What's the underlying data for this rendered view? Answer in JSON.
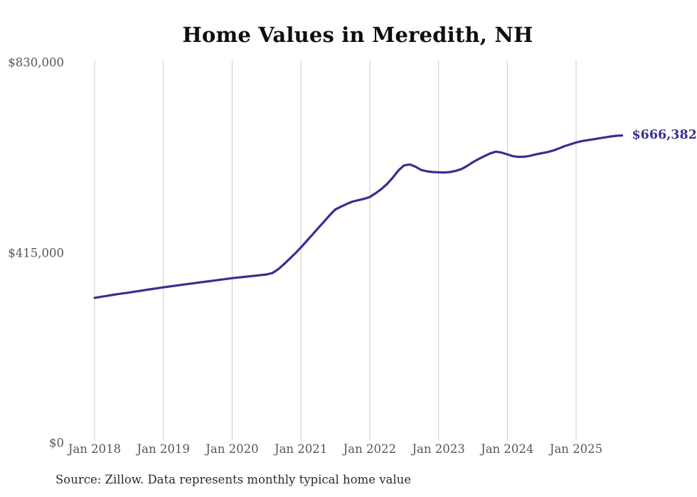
{
  "page": {
    "title": "Home Values in Meredith, NH",
    "source_note": "Source: Zillow. Data represents monthly typical home value"
  },
  "chart_data": {
    "type": "line",
    "title": "Home Values in Meredith, NH",
    "unit": "USD",
    "legend": "none",
    "grid": "vertical-only",
    "line_color": "#363090",
    "gridline_color": "#cccccc",
    "end_label": "$666,382",
    "end_value": 666382,
    "y_axis": {
      "min": 0,
      "max": 830000,
      "ticks": [
        {
          "label": "$830,000",
          "value": 830000
        },
        {
          "label": "$415,000",
          "value": 415000
        },
        {
          "label": "$0",
          "value": 0
        }
      ]
    },
    "x_axis": {
      "tick_labels": [
        "Jan 2018",
        "Jan 2019",
        "Jan 2020",
        "Jan 2021",
        "Jan 2022",
        "Jan 2023",
        "Jan 2024",
        "Jan 2025"
      ],
      "tick_month_indices": [
        0,
        12,
        24,
        36,
        48,
        60,
        72,
        84
      ]
    },
    "series": [
      {
        "name": "Monthly typical home value",
        "start_month": "2018-01",
        "frequency": "monthly",
        "values": [
          312000,
          314000,
          316000,
          318000,
          320000,
          321800,
          323600,
          325500,
          327400,
          329300,
          331200,
          333100,
          335000,
          336700,
          338300,
          340000,
          341700,
          343300,
          345000,
          346700,
          348300,
          350000,
          351700,
          353300,
          355000,
          356300,
          357600,
          359000,
          360300,
          361600,
          363000,
          366000,
          374000,
          385000,
          397000,
          409000,
          422000,
          436000,
          450000,
          464000,
          478000,
          492000,
          505000,
          511000,
          517000,
          522000,
          525000,
          528000,
          532000,
          540000,
          549000,
          560000,
          574000,
          590000,
          601000,
          603000,
          598000,
          591000,
          588000,
          586500,
          586000,
          585500,
          586500,
          589000,
          593000,
          600000,
          608000,
          615000,
          621000,
          627000,
          631000,
          629000,
          625000,
          621000,
          619500,
          620000,
          622000,
          625000,
          627500,
          630000,
          633500,
          638000,
          643000,
          647000,
          651000,
          654000,
          656000,
          658000,
          660000,
          662000,
          664000,
          665500,
          666382
        ]
      }
    ]
  }
}
